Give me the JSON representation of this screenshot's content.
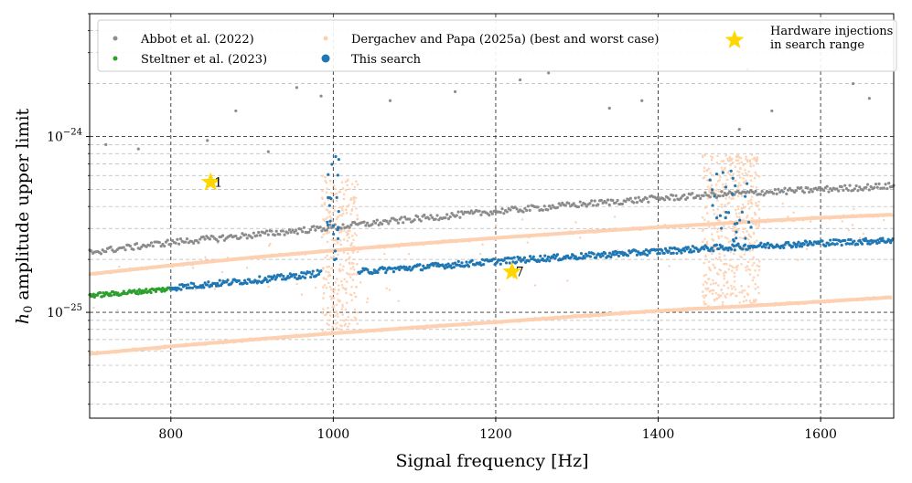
{
  "chart_data": {
    "type": "scatter",
    "xlabel": "Signal frequency [Hz]",
    "ylabel": "h_0 amplitude upper limit",
    "ylabel_main": "h",
    "ylabel_sub": "0",
    "ylabel_rest": " amplitude upper limit",
    "xlim": [
      700,
      1690
    ],
    "ylim": [
      2.5e-26,
      5e-24
    ],
    "yscale": "log",
    "x_ticks": [
      {
        "value": 800,
        "label": "800"
      },
      {
        "value": 1000,
        "label": "1000"
      },
      {
        "value": 1200,
        "label": "1200"
      },
      {
        "value": 1400,
        "label": "1400"
      },
      {
        "value": 1600,
        "label": "1600"
      }
    ],
    "y_ticks": [
      {
        "value": 1e-25,
        "base": "10",
        "exp": "−25"
      },
      {
        "value": 1e-24,
        "base": "10",
        "exp": "−24"
      }
    ],
    "grid": true,
    "legend_position": "top",
    "series": [
      {
        "name": "Abbot et al. (2022)",
        "color": "#8c8c8c",
        "x": [
          700,
          800,
          900,
          1000,
          1100,
          1200,
          1300,
          1400,
          1500,
          1600,
          1690
        ],
        "y": [
          2.2e-25,
          2.5e-25,
          2.75e-25,
          3.05e-25,
          3.4e-25,
          3.75e-25,
          4.1e-25,
          4.45e-25,
          4.75e-25,
          5e-25,
          5.25e-25
        ]
      },
      {
        "name": "Steltner et al. (2023)",
        "color": "#2ca02c",
        "x": [
          700,
          725,
          750,
          775,
          800
        ],
        "y": [
          1.25e-25,
          1.27e-25,
          1.3e-25,
          1.33e-25,
          1.36e-25
        ]
      },
      {
        "name": "Dergachev and Papa (2025a) (best and worst case)",
        "color": "#fdd0b1",
        "best_case": {
          "x": [
            700,
            800,
            900,
            1000,
            1100,
            1200,
            1300,
            1400,
            1500,
            1600,
            1690
          ],
          "y": [
            5.8e-26,
            6.4e-26,
            7e-26,
            7.6e-26,
            8.2e-26,
            8.8e-26,
            9.5e-26,
            1.02e-25,
            1.08e-25,
            1.15e-25,
            1.22e-25
          ]
        },
        "worst_case": {
          "x": [
            700,
            800,
            900,
            1000,
            1100,
            1200,
            1300,
            1400,
            1500,
            1600,
            1690
          ],
          "y": [
            1.65e-25,
            1.85e-25,
            2.05e-25,
            2.25e-25,
            2.45e-25,
            2.65e-25,
            2.85e-25,
            3.05e-25,
            3.25e-25,
            3.45e-25,
            3.6e-25
          ]
        }
      },
      {
        "name": "This search",
        "color": "#1f77b4",
        "x": [
          800,
          850,
          900,
          950,
          985,
          1030,
          1100,
          1150,
          1200,
          1250,
          1300,
          1350,
          1400,
          1450,
          1500,
          1550,
          1600,
          1650,
          1690
        ],
        "y": [
          1.38e-25,
          1.45e-25,
          1.52e-25,
          1.6e-25,
          1.68e-25,
          1.7e-25,
          1.8e-25,
          1.87e-25,
          1.95e-25,
          2.02e-25,
          2.08e-25,
          2.15e-25,
          2.22e-25,
          2.3e-25,
          2.36e-25,
          2.42e-25,
          2.48e-25,
          2.53e-25,
          2.58e-25
        ]
      }
    ],
    "hardware_injections": {
      "name_line1": "Hardware injections",
      "name_line2": "in search range",
      "color": "#ffd700",
      "points": [
        {
          "x": 849,
          "y": 5.5e-25,
          "label": "1"
        },
        {
          "x": 1220,
          "y": 1.7e-25,
          "label": "7"
        }
      ]
    }
  }
}
